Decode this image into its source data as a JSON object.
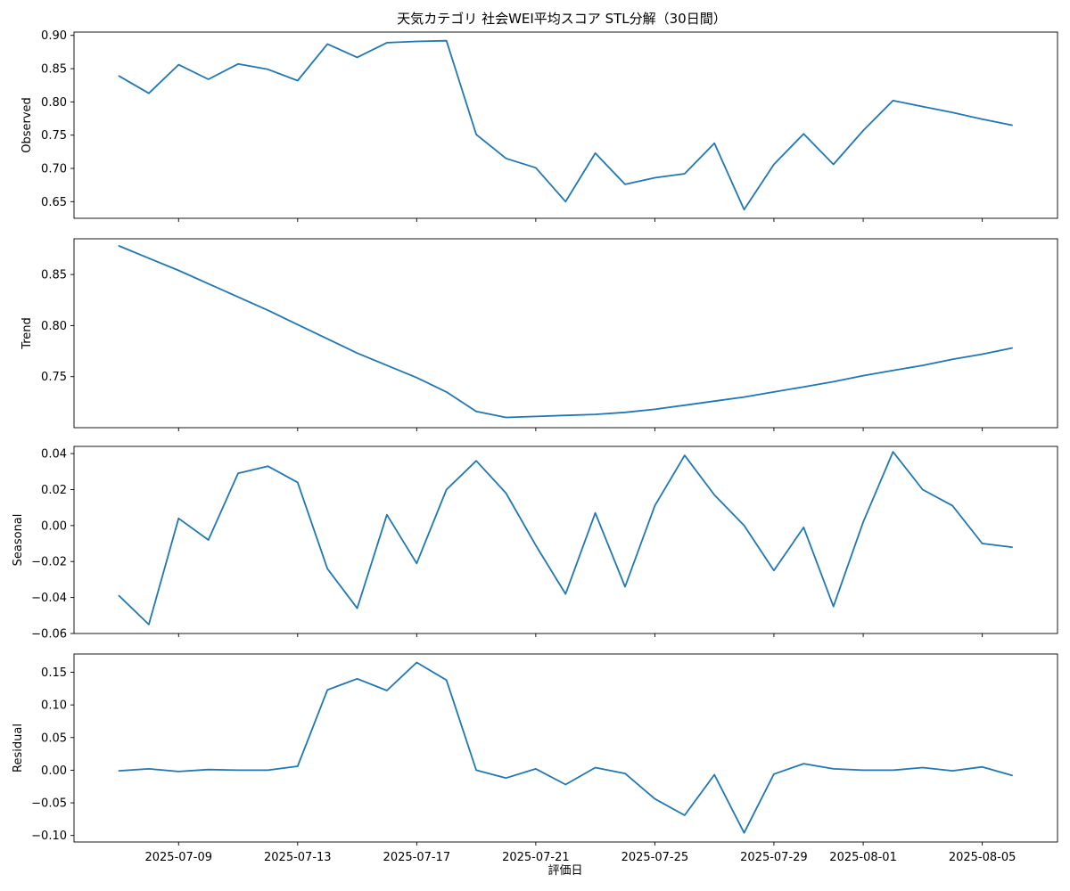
{
  "chart_data": {
    "type": "line",
    "title": "天気カテゴリ 社会WEI平均スコア STL分解（30日間）",
    "xlabel": "評価日",
    "x": [
      "2025-07-07",
      "2025-07-08",
      "2025-07-09",
      "2025-07-10",
      "2025-07-11",
      "2025-07-12",
      "2025-07-13",
      "2025-07-14",
      "2025-07-15",
      "2025-07-16",
      "2025-07-17",
      "2025-07-18",
      "2025-07-19",
      "2025-07-20",
      "2025-07-21",
      "2025-07-22",
      "2025-07-23",
      "2025-07-24",
      "2025-07-25",
      "2025-07-26",
      "2025-07-27",
      "2025-07-28",
      "2025-07-29",
      "2025-07-30",
      "2025-07-31",
      "2025-08-01",
      "2025-08-02",
      "2025-08-03",
      "2025-08-04",
      "2025-08-05",
      "2025-08-06"
    ],
    "x_ticks": [
      "2025-07-09",
      "2025-07-13",
      "2025-07-17",
      "2025-07-21",
      "2025-07-25",
      "2025-07-29",
      "2025-08-01",
      "2025-08-05"
    ],
    "line_color": "#1f77b4",
    "panels": [
      {
        "ylabel": "Observed",
        "ylim": [
          0.625,
          0.905
        ],
        "yticks": [
          0.65,
          0.7,
          0.75,
          0.8,
          0.85,
          0.9
        ],
        "tick_labels": [
          "0.65",
          "0.70",
          "0.75",
          "0.80",
          "0.85",
          "0.90"
        ],
        "values": [
          0.839,
          0.813,
          0.856,
          0.834,
          0.857,
          0.849,
          0.832,
          0.887,
          0.867,
          0.889,
          0.891,
          0.892,
          0.751,
          0.715,
          0.701,
          0.65,
          0.723,
          0.676,
          0.686,
          0.692,
          0.738,
          0.638,
          0.706,
          0.752,
          0.706,
          0.757,
          0.802,
          0.793,
          0.784,
          0.774,
          0.765
        ]
      },
      {
        "ylabel": "Trend",
        "ylim": [
          0.7,
          0.885
        ],
        "yticks": [
          0.75,
          0.8,
          0.85
        ],
        "tick_labels": [
          "0.75",
          "0.80",
          "0.85"
        ],
        "values": [
          0.878,
          0.866,
          0.854,
          0.841,
          0.828,
          0.815,
          0.801,
          0.787,
          0.773,
          0.761,
          0.749,
          0.735,
          0.716,
          0.71,
          0.711,
          0.712,
          0.713,
          0.715,
          0.718,
          0.722,
          0.726,
          0.73,
          0.735,
          0.74,
          0.745,
          0.751,
          0.756,
          0.761,
          0.767,
          0.772,
          0.778
        ]
      },
      {
        "ylabel": "Seasonal",
        "ylim": [
          -0.06,
          0.044
        ],
        "yticks": [
          -0.06,
          -0.04,
          -0.02,
          0.0,
          0.02,
          0.04
        ],
        "tick_labels": [
          "−0.06",
          "−0.04",
          "−0.02",
          "0.00",
          "0.02",
          "0.04"
        ],
        "values": [
          -0.039,
          -0.055,
          0.004,
          -0.008,
          0.029,
          0.033,
          0.024,
          -0.024,
          -0.046,
          0.006,
          -0.021,
          0.02,
          0.036,
          0.018,
          -0.011,
          -0.038,
          0.007,
          -0.034,
          0.011,
          0.039,
          0.017,
          0.0,
          -0.025,
          -0.001,
          -0.045,
          0.002,
          0.041,
          0.02,
          0.011,
          -0.01,
          -0.012
        ]
      },
      {
        "ylabel": "Residual",
        "ylim": [
          -0.11,
          0.178
        ],
        "yticks": [
          -0.1,
          -0.05,
          0.0,
          0.05,
          0.1,
          0.15
        ],
        "tick_labels": [
          "−0.10",
          "−0.05",
          "0.00",
          "0.05",
          "0.10",
          "0.15"
        ],
        "values": [
          -0.001,
          0.002,
          -0.002,
          0.001,
          0.0,
          0.0,
          0.006,
          0.123,
          0.14,
          0.122,
          0.165,
          0.138,
          0.0,
          -0.012,
          0.002,
          -0.022,
          0.004,
          -0.005,
          -0.044,
          -0.069,
          -0.007,
          -0.096,
          -0.006,
          0.01,
          0.002,
          0.0,
          0.0,
          0.004,
          -0.001,
          0.005,
          -0.008
        ]
      }
    ]
  }
}
